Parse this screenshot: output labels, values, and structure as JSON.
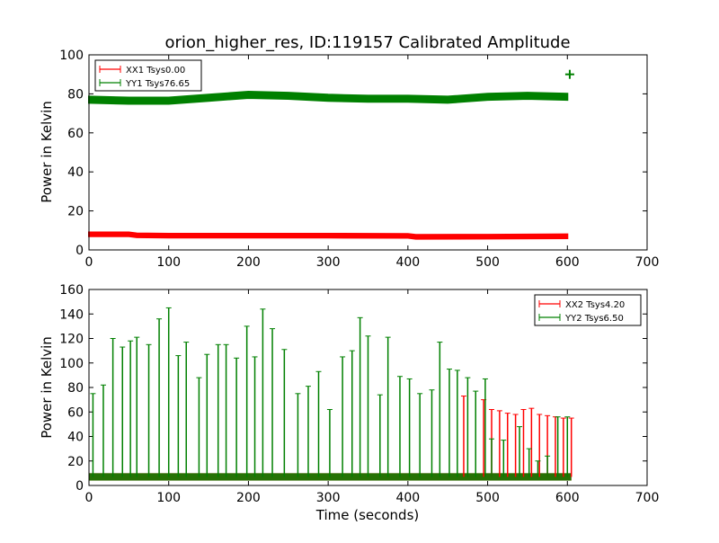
{
  "figure": {
    "xlabel": "Time (seconds)"
  },
  "chart_data": [
    {
      "type": "line",
      "title": "orion_higher_res, ID:119157 Calibrated Amplitude",
      "xlabel": "",
      "ylabel": "Power in Kelvin",
      "xlim": [
        0,
        700
      ],
      "ylim": [
        0,
        100
      ],
      "xticks": [
        "0",
        "100",
        "200",
        "300",
        "400",
        "500",
        "600",
        "700"
      ],
      "yticks": [
        "0",
        "20",
        "40",
        "60",
        "80",
        "100"
      ],
      "legend_position": "top-left",
      "series": [
        {
          "name": "XX1 Tsys0.00",
          "color": "#ff0000",
          "x": [
            0,
            50,
            60,
            100,
            200,
            300,
            400,
            410,
            500,
            600
          ],
          "y": [
            8,
            8,
            7.5,
            7.3,
            7.3,
            7.3,
            7.2,
            6.7,
            6.8,
            7
          ]
        },
        {
          "name": "YY1 Tsys76.65",
          "color": "#008000",
          "x": [
            0,
            50,
            100,
            150,
            200,
            250,
            300,
            350,
            400,
            450,
            500,
            550,
            600
          ],
          "y": [
            77,
            76.5,
            76.5,
            78,
            79.5,
            79,
            78,
            77.5,
            77.5,
            77,
            78.5,
            79,
            78.5
          ]
        }
      ]
    },
    {
      "type": "line",
      "title": "",
      "xlabel": "Time (seconds)",
      "ylabel": "Power in Kelvin",
      "xlim": [
        0,
        700
      ],
      "ylim": [
        0,
        160
      ],
      "xticks": [
        "0",
        "100",
        "200",
        "300",
        "400",
        "500",
        "600",
        "700"
      ],
      "yticks": [
        "0",
        "20",
        "40",
        "60",
        "80",
        "100",
        "120",
        "140",
        "160"
      ],
      "legend_position": "top-right",
      "series": [
        {
          "name": "XX2 Tsys4.20",
          "color": "#ff0000",
          "baseline": 7,
          "spike_x": [
            470,
            495,
            505,
            515,
            525,
            535,
            545,
            555,
            565,
            575,
            585,
            595,
            605
          ],
          "spike_y": [
            73,
            70,
            62,
            61,
            59,
            58,
            62,
            63,
            58,
            57,
            56,
            55,
            55
          ]
        },
        {
          "name": "YY2 Tsys6.50",
          "color": "#008000",
          "baseline": 7,
          "spike_x": [
            5,
            18,
            30,
            42,
            52,
            60,
            75,
            88,
            100,
            112,
            122,
            138,
            148,
            162,
            172,
            185,
            198,
            208,
            218,
            230,
            245,
            262,
            275,
            288,
            302,
            318,
            330,
            340,
            350,
            365,
            375,
            390,
            402,
            415,
            430,
            440,
            452,
            462,
            475,
            485,
            497,
            505,
            520,
            540,
            552,
            563,
            575,
            588,
            600
          ],
          "spike_y": [
            75,
            82,
            120,
            113,
            118,
            121,
            115,
            136,
            145,
            106,
            117,
            88,
            107,
            115,
            115,
            104,
            130,
            105,
            144,
            128,
            111,
            75,
            81,
            93,
            62,
            105,
            110,
            137,
            122,
            74,
            121,
            89,
            87,
            75,
            78,
            117,
            95,
            94,
            88,
            77,
            87,
            38,
            37,
            48,
            30,
            20,
            24,
            56,
            56
          ]
        }
      ]
    }
  ]
}
